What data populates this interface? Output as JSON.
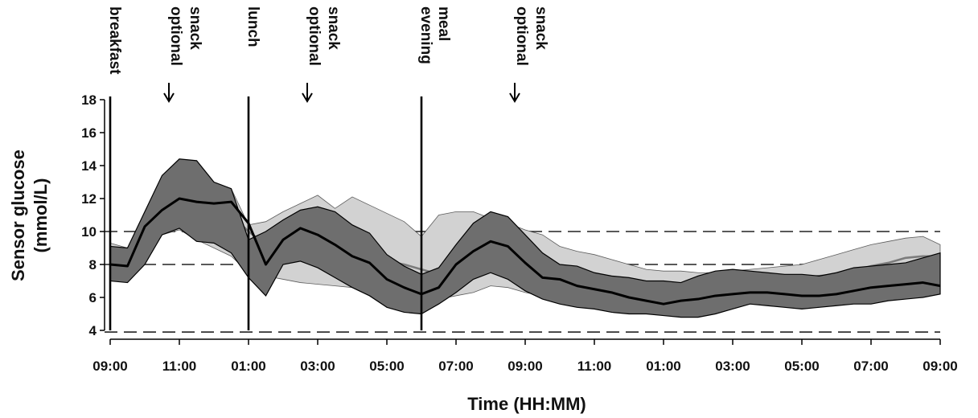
{
  "chart_data": {
    "type": "line",
    "title": "",
    "xlabel": "Time (HH:MM)",
    "ylabel_lines": [
      "Sensor glucose",
      "(mmol/L)"
    ],
    "ylim": [
      4,
      18
    ],
    "yticks": [
      4,
      6,
      8,
      10,
      12,
      14,
      16,
      18
    ],
    "xlim": [
      0,
      24
    ],
    "xticks": [
      {
        "x": 0,
        "label": "09:00"
      },
      {
        "x": 2,
        "label": "11:00"
      },
      {
        "x": 4,
        "label": "01:00"
      },
      {
        "x": 6,
        "label": "03:00"
      },
      {
        "x": 8,
        "label": "05:00"
      },
      {
        "x": 10,
        "label": "07:00"
      },
      {
        "x": 12,
        "label": "09:00"
      },
      {
        "x": 14,
        "label": "11:00"
      },
      {
        "x": 16,
        "label": "01:00"
      },
      {
        "x": 18,
        "label": "03:00"
      },
      {
        "x": 20,
        "label": "05:00"
      },
      {
        "x": 22,
        "label": "07:00"
      },
      {
        "x": 24,
        "label": "09:00"
      }
    ],
    "reference_lines": [
      {
        "y": 10,
        "style": "dashed"
      },
      {
        "y": 8,
        "style": "dashed"
      },
      {
        "y": 3.9,
        "style": "dashed"
      }
    ],
    "meal_markers": [
      {
        "x": 0,
        "lines": [
          "breakfast"
        ]
      },
      {
        "x": 4,
        "lines": [
          "lunch"
        ]
      },
      {
        "x": 9,
        "lines": [
          "evening",
          "meal"
        ]
      }
    ],
    "snack_markers": [
      {
        "x": 2,
        "lines": [
          "optional",
          "snack"
        ]
      },
      {
        "x": 6,
        "lines": [
          "optional",
          "snack"
        ]
      },
      {
        "x": 12,
        "lines": [
          "optional",
          "snack"
        ]
      }
    ],
    "series": [
      {
        "style": "light-band",
        "color": "#7c7c7c",
        "fill": "#d2d2d2",
        "x": [
          0,
          0.5,
          1,
          1.5,
          2,
          2.5,
          3,
          3.5,
          4,
          4.5,
          5,
          5.5,
          6,
          6.5,
          7,
          7.5,
          8,
          8.5,
          9,
          9.5,
          10,
          10.5,
          11,
          11.5,
          12,
          12.5,
          13,
          13.5,
          14,
          14.5,
          15,
          15.5,
          16,
          16.5,
          17,
          17.5,
          18,
          18.5,
          19,
          19.5,
          20,
          20.5,
          21,
          21.5,
          22,
          22.5,
          23,
          23.5,
          24
        ],
        "median": [
          8.0,
          7.9,
          10.0,
          11.2,
          11.8,
          11.5,
          11.4,
          11.0,
          10.0,
          9.2,
          9.0,
          8.9,
          8.8,
          8.7,
          8.5,
          8.4,
          8.2,
          8.0,
          7.7,
          7.4,
          8.0,
          8.4,
          8.8,
          8.5,
          8.0,
          7.8,
          7.5,
          7.4,
          7.3,
          7.0,
          6.9,
          6.8,
          6.9,
          6.8,
          6.7,
          6.8,
          6.9,
          7.0,
          7.1,
          7.1,
          7.2,
          7.3,
          7.4,
          7.6,
          7.9,
          8.1,
          8.4,
          8.5,
          8.5
        ],
        "lower": [
          7.5,
          7.0,
          8.0,
          9.8,
          10.1,
          9.5,
          9.0,
          8.5,
          7.5,
          7.3,
          7.1,
          6.9,
          6.8,
          6.7,
          6.6,
          6.4,
          6.1,
          5.9,
          5.9,
          5.9,
          6.1,
          6.3,
          6.7,
          6.6,
          6.3,
          6.1,
          5.8,
          5.6,
          5.6,
          5.5,
          5.5,
          5.6,
          5.7,
          5.8,
          5.9,
          5.9,
          5.9,
          6.0,
          6.0,
          6.0,
          6.1,
          6.2,
          6.3,
          6.5,
          6.8,
          7.1,
          7.4,
          7.6,
          7.7
        ],
        "upper": [
          9.3,
          9.0,
          11.0,
          12.0,
          12.6,
          12.9,
          13.0,
          12.6,
          10.4,
          10.6,
          11.2,
          11.7,
          12.2,
          11.4,
          12.1,
          11.6,
          11.1,
          10.6,
          9.7,
          11.0,
          11.2,
          11.2,
          10.8,
          10.5,
          10.1,
          9.8,
          9.1,
          8.8,
          8.6,
          8.3,
          8.0,
          7.7,
          7.6,
          7.6,
          7.5,
          7.5,
          7.6,
          7.7,
          7.8,
          7.9,
          8.0,
          8.3,
          8.6,
          8.9,
          9.2,
          9.4,
          9.6,
          9.7,
          9.2
        ]
      },
      {
        "style": "dark-band",
        "color": "#000000",
        "fill": "#6e6e6e",
        "x": [
          0,
          0.5,
          1,
          1.5,
          2,
          2.5,
          3,
          3.5,
          4,
          4.5,
          5,
          5.5,
          6,
          6.5,
          7,
          7.5,
          8,
          8.5,
          9,
          9.5,
          10,
          10.5,
          11,
          11.5,
          12,
          12.5,
          13,
          13.5,
          14,
          14.5,
          15,
          15.5,
          16,
          16.5,
          17,
          17.5,
          18,
          18.5,
          19,
          19.5,
          20,
          20.5,
          21,
          21.5,
          22,
          22.5,
          23,
          23.5,
          24
        ],
        "median": [
          8.0,
          7.9,
          10.3,
          11.3,
          12.0,
          11.8,
          11.7,
          11.8,
          10.5,
          8.0,
          9.5,
          10.2,
          9.8,
          9.2,
          8.5,
          8.1,
          7.1,
          6.6,
          6.2,
          6.6,
          8.0,
          8.8,
          9.4,
          9.1,
          8.1,
          7.2,
          7.1,
          6.7,
          6.5,
          6.3,
          6.0,
          5.8,
          5.6,
          5.8,
          5.9,
          6.1,
          6.2,
          6.3,
          6.3,
          6.2,
          6.1,
          6.1,
          6.2,
          6.4,
          6.6,
          6.7,
          6.8,
          6.9,
          6.7
        ],
        "lower": [
          7.0,
          6.9,
          8.0,
          9.8,
          10.2,
          9.4,
          9.3,
          8.7,
          7.2,
          6.1,
          8.0,
          8.2,
          7.8,
          7.2,
          6.6,
          6.1,
          5.4,
          5.1,
          5.0,
          5.6,
          6.3,
          7.1,
          7.5,
          7.1,
          6.4,
          5.9,
          5.6,
          5.4,
          5.3,
          5.1,
          5.0,
          5.0,
          4.9,
          4.8,
          4.8,
          5.0,
          5.3,
          5.6,
          5.5,
          5.4,
          5.3,
          5.4,
          5.5,
          5.6,
          5.6,
          5.8,
          5.9,
          6.0,
          6.2
        ],
        "upper": [
          9.1,
          9.0,
          11.2,
          13.4,
          14.4,
          14.3,
          13.0,
          12.6,
          9.5,
          10.0,
          10.7,
          11.3,
          11.5,
          11.2,
          10.4,
          9.9,
          8.6,
          7.9,
          7.4,
          7.8,
          9.2,
          10.5,
          11.2,
          10.9,
          9.8,
          8.7,
          8.0,
          7.9,
          7.5,
          7.3,
          7.2,
          7.0,
          7.0,
          6.9,
          7.3,
          7.6,
          7.7,
          7.6,
          7.5,
          7.4,
          7.4,
          7.3,
          7.5,
          7.8,
          7.9,
          8.0,
          8.1,
          8.4,
          8.7
        ]
      }
    ]
  }
}
